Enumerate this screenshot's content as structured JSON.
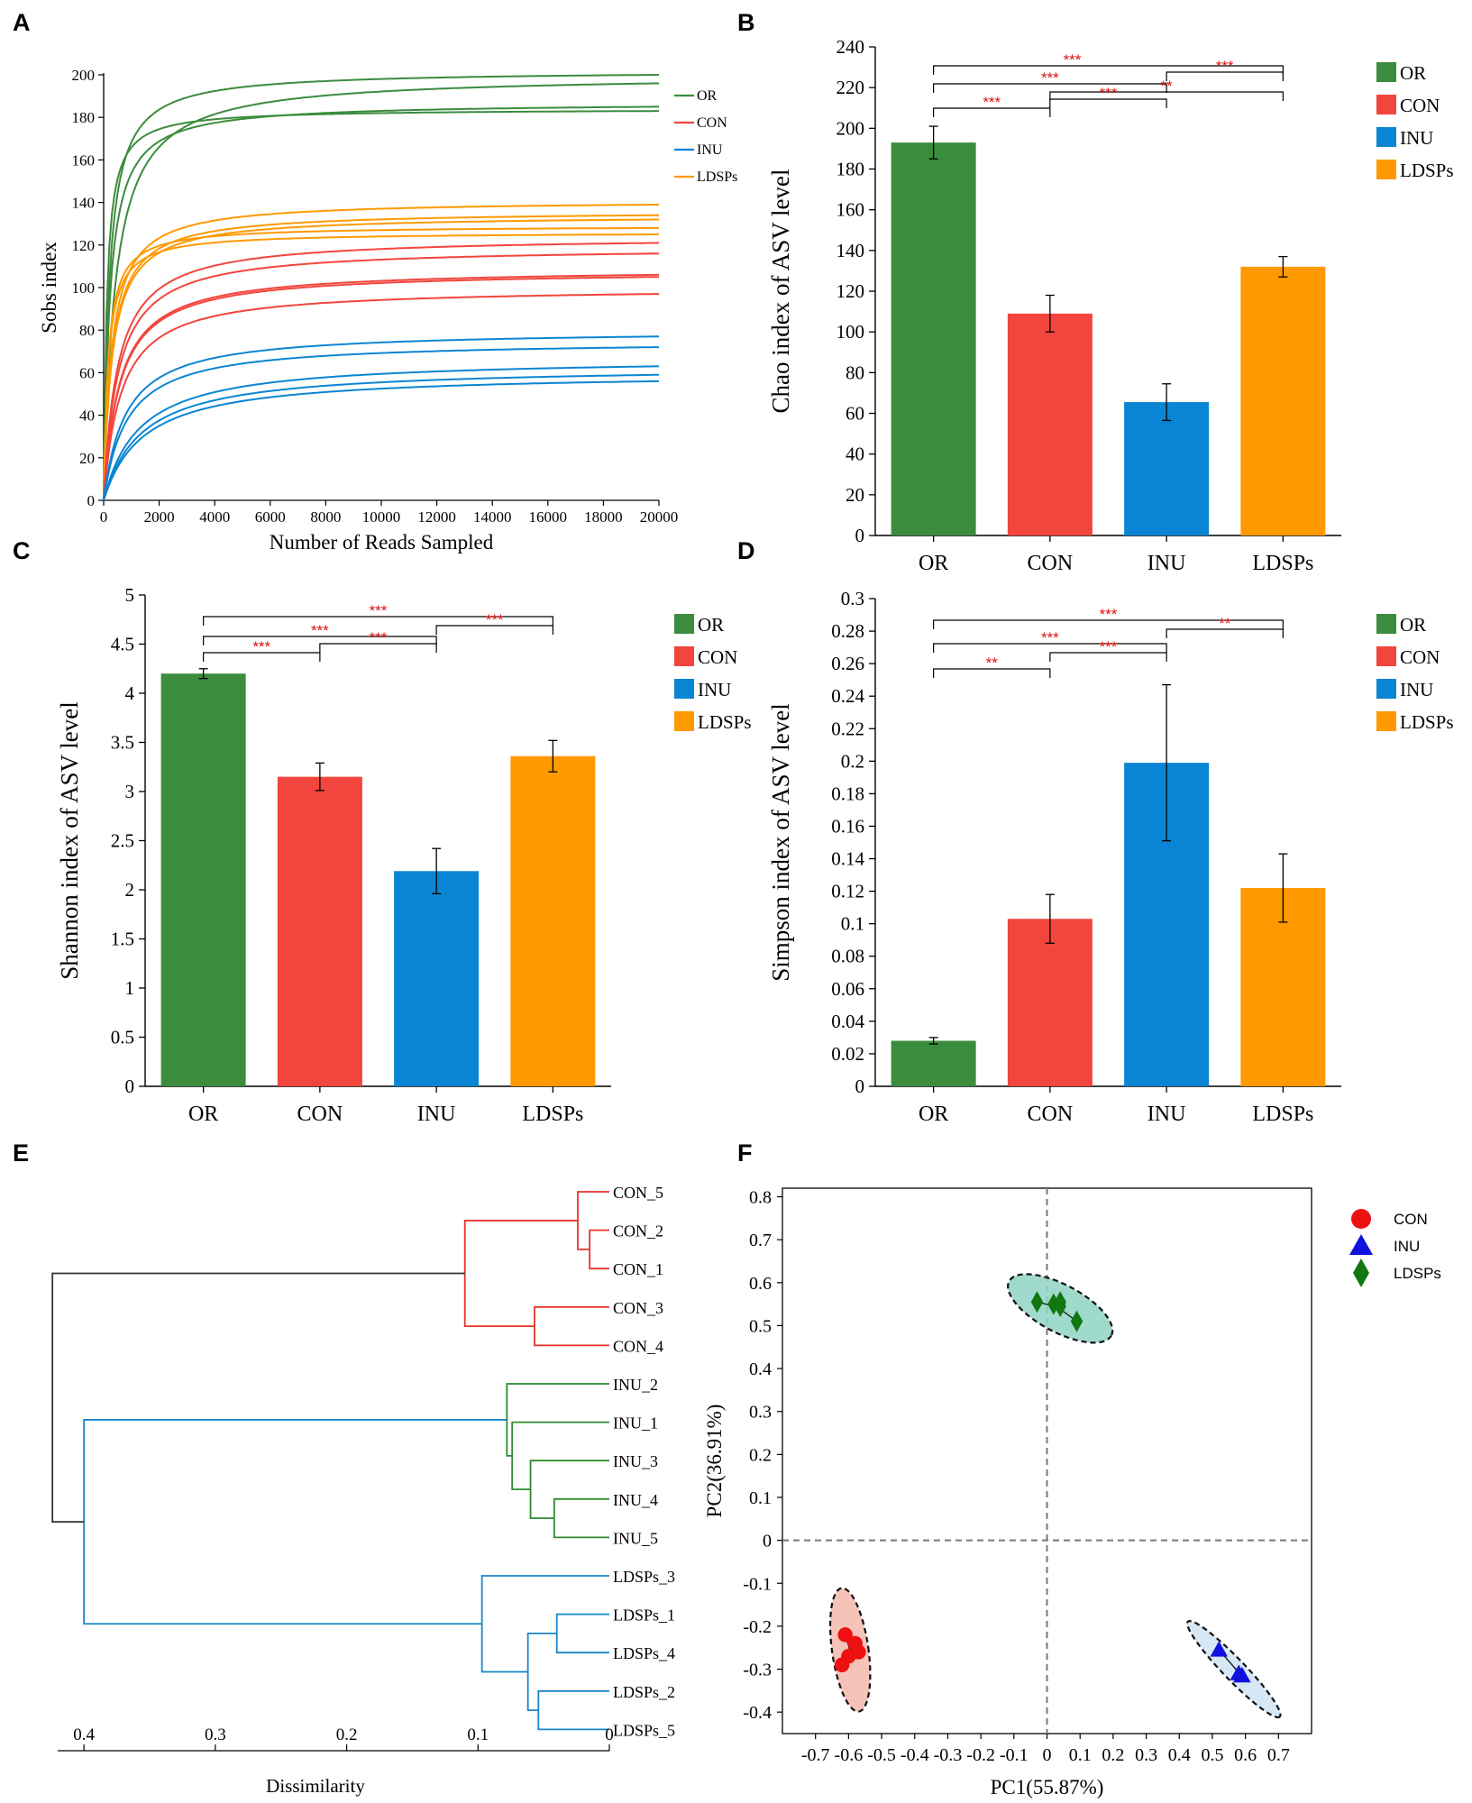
{
  "colors": {
    "OR": "#3b8c3d",
    "CON": "#f2453d",
    "INU": "#0a85d3",
    "LDSPs": "#ff9900",
    "sig": "#dd1111",
    "dendro_con": "#e8332a",
    "dendro_inu": "#2e8b2e",
    "dendro_ldsp": "#1786c9",
    "pcoa_con": "#ee1111",
    "pcoa_inu": "#1111dd",
    "pcoa_ldsp": "#117711",
    "ell_con": "#f4b9ad",
    "ell_inu": "#cfe3f5",
    "ell_ldsp": "#8fd4c3"
  },
  "panel_letters": [
    "A",
    "B",
    "C",
    "D",
    "E",
    "F"
  ],
  "chart_data": [
    {
      "panel": "A",
      "type": "line",
      "title": "",
      "xlabel": "Number of Reads Sampled",
      "ylabel": "Sobs index",
      "xlim": [
        0,
        20000
      ],
      "ylim": [
        0,
        200
      ],
      "xticks": [
        "0",
        "2000",
        "4000",
        "6000",
        "8000",
        "10000",
        "12000",
        "14000",
        "16000",
        "18000",
        "20000"
      ],
      "yticks": [
        "0",
        "20",
        "40",
        "60",
        "80",
        "100",
        "120",
        "140",
        "160",
        "180",
        "200"
      ],
      "legend": [
        "OR",
        "CON",
        "INU",
        "LDSPs"
      ],
      "series": [
        {
          "name": "OR",
          "asymptotes": [
            202,
            200,
            187,
            184
          ],
          "end_values": [
            200,
            196,
            185,
            183
          ]
        },
        {
          "name": "LDSPs",
          "asymptotes": [
            141,
            136,
            134,
            129,
            126
          ],
          "end_values": [
            139,
            134,
            132,
            128,
            125
          ]
        },
        {
          "name": "CON",
          "asymptotes": [
            124,
            119,
            109,
            108,
            100
          ],
          "end_values": [
            121,
            116,
            106,
            105,
            97
          ]
        },
        {
          "name": "INU",
          "asymptotes": [
            80,
            75,
            67,
            63,
            60
          ],
          "end_values": [
            77,
            72,
            63,
            59,
            56
          ]
        }
      ]
    },
    {
      "panel": "B",
      "type": "bar",
      "ylabel": "Chao index of ASV level",
      "ylim": [
        0,
        240
      ],
      "yticks": [
        "0",
        "20",
        "40",
        "60",
        "80",
        "100",
        "120",
        "140",
        "160",
        "180",
        "200",
        "220",
        "240"
      ],
      "categories": [
        "OR",
        "CON",
        "INU",
        "LDSPs"
      ],
      "values": [
        193,
        109,
        65.5,
        132
      ],
      "errors": [
        8,
        9,
        9,
        5
      ],
      "legend": [
        "OR",
        "CON",
        "INU",
        "LDSPs"
      ],
      "significance": [
        {
          "from": 0,
          "to": 3,
          "label": "***"
        },
        {
          "from": 2,
          "to": 3,
          "label": "***"
        },
        {
          "from": 0,
          "to": 2,
          "label": "***"
        },
        {
          "from": 1,
          "to": 3,
          "label": "**"
        },
        {
          "from": 0,
          "to": 1,
          "label": "***"
        },
        {
          "from": 1,
          "to": 2,
          "label": "***"
        }
      ]
    },
    {
      "panel": "C",
      "type": "bar",
      "ylabel": "Shannon index of ASV level",
      "ylim": [
        0,
        5
      ],
      "yticks": [
        "0",
        "0.5",
        "1",
        "1.5",
        "2",
        "2.5",
        "3",
        "3.5",
        "4",
        "4.5",
        "5"
      ],
      "categories": [
        "OR",
        "CON",
        "INU",
        "LDSPs"
      ],
      "values": [
        4.2,
        3.15,
        2.19,
        3.36
      ],
      "errors": [
        0.05,
        0.14,
        0.23,
        0.16
      ],
      "legend": [
        "OR",
        "CON",
        "INU",
        "LDSPs"
      ],
      "significance": [
        {
          "from": 0,
          "to": 3,
          "label": "***"
        },
        {
          "from": 2,
          "to": 3,
          "label": "***"
        },
        {
          "from": 0,
          "to": 2,
          "label": "***"
        },
        {
          "from": 0,
          "to": 1,
          "label": "***"
        },
        {
          "from": 1,
          "to": 2,
          "label": "***"
        }
      ]
    },
    {
      "panel": "D",
      "type": "bar",
      "ylabel": "Simpson index of ASV level",
      "ylim": [
        0,
        0.3
      ],
      "yticks": [
        "0",
        "0.02",
        "0.04",
        "0.06",
        "0.08",
        "0.1",
        "0.12",
        "0.14",
        "0.16",
        "0.18",
        "0.2",
        "0.22",
        "0.24",
        "0.26",
        "0.28",
        "0.3"
      ],
      "categories": [
        "OR",
        "CON",
        "INU",
        "LDSPs"
      ],
      "values": [
        0.028,
        0.103,
        0.199,
        0.122
      ],
      "errors": [
        0.002,
        0.015,
        0.048,
        0.021
      ],
      "legend": [
        "OR",
        "CON",
        "INU",
        "LDSPs"
      ],
      "significance": [
        {
          "from": 0,
          "to": 3,
          "label": "***"
        },
        {
          "from": 2,
          "to": 3,
          "label": "**"
        },
        {
          "from": 0,
          "to": 2,
          "label": "***"
        },
        {
          "from": 0,
          "to": 1,
          "label": "**"
        },
        {
          "from": 1,
          "to": 2,
          "label": "***"
        }
      ]
    },
    {
      "panel": "E",
      "type": "dendrogram",
      "xlabel": "Dissimilarity",
      "xlim": [
        0.42,
        0
      ],
      "xticks": [
        "0.4",
        "0.3",
        "0.2",
        "0.1",
        "0"
      ],
      "leaves": [
        "CON_5",
        "CON_2",
        "CON_1",
        "CON_3",
        "CON_4",
        "INU_2",
        "INU_1",
        "INU_3",
        "INU_4",
        "INU_5",
        "LDSPs_3",
        "LDSPs_1",
        "LDSPs_4",
        "LDSPs_2",
        "LDSPs_5"
      ],
      "merges": [
        {
          "a": 1,
          "b": 2,
          "h": 0.015,
          "group": "con"
        },
        {
          "a": 0,
          "b": "m0",
          "h": 0.024,
          "group": "con"
        },
        {
          "a": 3,
          "b": 4,
          "h": 0.057,
          "group": "con"
        },
        {
          "a": "m1",
          "b": "m2",
          "h": 0.11,
          "group": "con"
        },
        {
          "a": 8,
          "b": 9,
          "h": 0.042,
          "group": "inu"
        },
        {
          "a": 7,
          "b": "m4",
          "h": 0.06,
          "group": "inu"
        },
        {
          "a": 6,
          "b": "m5",
          "h": 0.074,
          "group": "inu"
        },
        {
          "a": 5,
          "b": "m6",
          "h": 0.078,
          "group": "inu"
        },
        {
          "a": 11,
          "b": 12,
          "h": 0.04,
          "group": "ldsp"
        },
        {
          "a": 13,
          "b": 14,
          "h": 0.054,
          "group": "ldsp"
        },
        {
          "a": "m8",
          "b": "m9",
          "h": 0.062,
          "group": "ldsp"
        },
        {
          "a": 10,
          "b": "m10",
          "h": 0.097,
          "group": "ldsp"
        },
        {
          "a": "m7",
          "b": "m11",
          "h": 0.4,
          "group": "ldsp"
        },
        {
          "a": "m3",
          "b": "m12",
          "h": 0.424,
          "group": "root"
        }
      ]
    },
    {
      "panel": "F",
      "type": "scatter",
      "xlabel": "PC1(55.87%)",
      "ylabel": "PC2(36.91%)",
      "xlim": [
        -0.8,
        0.8
      ],
      "ylim": [
        -0.45,
        0.82
      ],
      "xticks": [
        -0.7,
        -0.6,
        -0.5,
        -0.4,
        -0.3,
        -0.2,
        -0.1,
        0,
        0.1,
        0.2,
        0.3,
        0.4,
        0.5,
        0.6,
        0.7
      ],
      "xtick_labels": [
        "-0.7",
        "-0.6",
        "-0.5",
        "-0.4",
        "-0.3",
        "-0.2",
        "-0.1",
        "0",
        "0.1",
        "0.2",
        "0.3",
        "0.4",
        "0.5",
        "0.6",
        "0.7"
      ],
      "yticks": [
        0.8,
        0.7,
        0.6,
        0.5,
        0.4,
        0.3,
        0.2,
        0.1,
        0,
        -0.1,
        -0.2,
        -0.3,
        -0.4
      ],
      "ytick_labels": [
        "0.8",
        "0.7",
        "0.6",
        "0.5",
        "0.4",
        "0.3",
        "0.2",
        "0.1",
        "0",
        "-0.1",
        "-0.2",
        "-0.3",
        "-0.4"
      ],
      "legend": [
        "CON",
        "INU",
        "LDSPs"
      ],
      "series": [
        {
          "name": "CON",
          "marker": "circle",
          "points": [
            [
              -0.61,
              -0.22
            ],
            [
              -0.58,
              -0.24
            ],
            [
              -0.57,
              -0.26
            ],
            [
              -0.6,
              -0.27
            ],
            [
              -0.62,
              -0.29
            ]
          ],
          "ellipse": {
            "cx": -0.595,
            "cy": -0.255,
            "rx": 0.055,
            "ry": 0.145,
            "rot": -8
          }
        },
        {
          "name": "INU",
          "marker": "triangle",
          "points": [
            [
              0.52,
              -0.255
            ],
            [
              0.58,
              -0.31
            ],
            [
              0.59,
              -0.315
            ]
          ],
          "ellipse": {
            "cx": 0.565,
            "cy": -0.3,
            "rx": 0.2,
            "ry": 0.025,
            "rot": 46
          }
        },
        {
          "name": "LDSPs",
          "marker": "diamond",
          "points": [
            [
              -0.03,
              0.555
            ],
            [
              0.04,
              0.555
            ],
            [
              0.04,
              0.545
            ],
            [
              0.02,
              0.55
            ],
            [
              0.09,
              0.51
            ]
          ],
          "ellipse": {
            "cx": 0.04,
            "cy": 0.54,
            "rx": 0.175,
            "ry": 0.055,
            "rot": 28
          }
        }
      ]
    }
  ]
}
